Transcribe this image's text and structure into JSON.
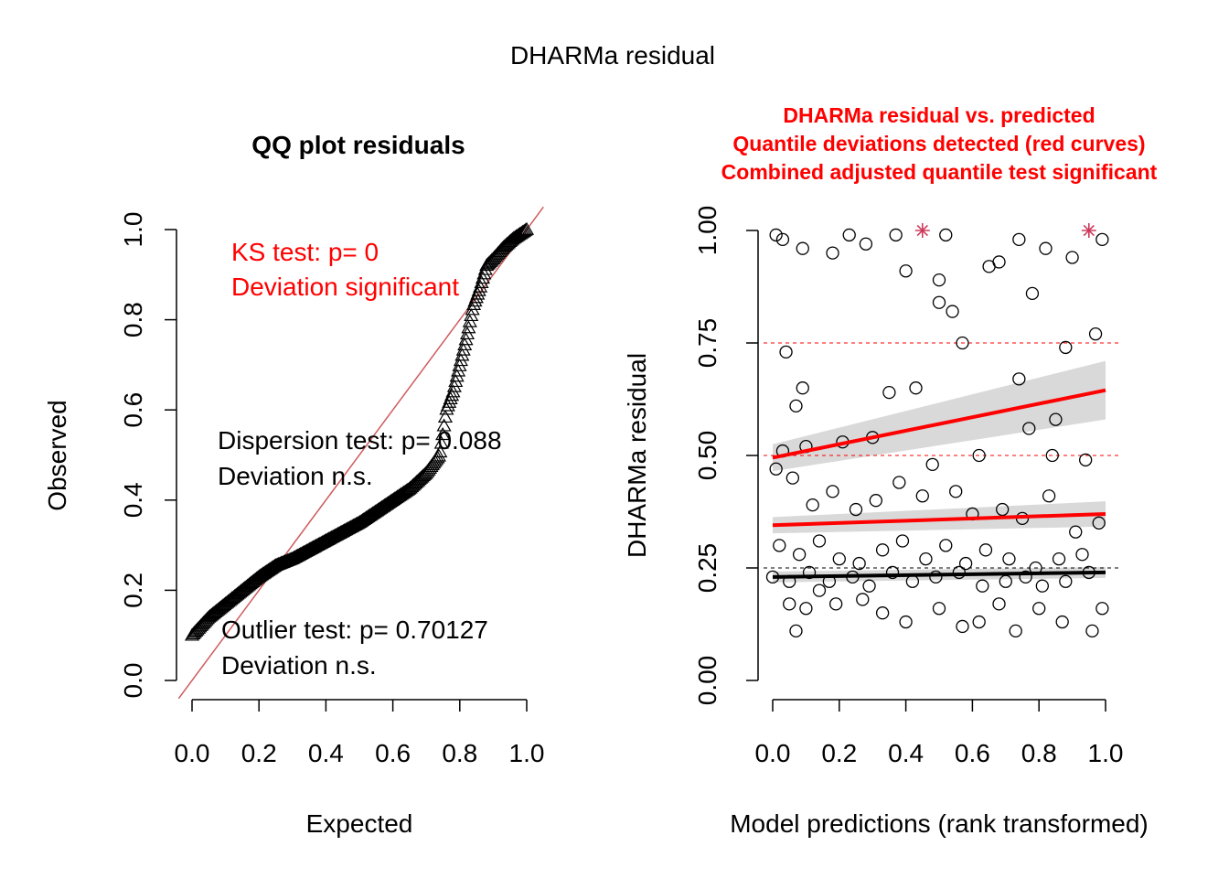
{
  "title": "DHARMa residual",
  "qq": {
    "title": "QQ plot residuals",
    "xlabel": "Expected",
    "ylabel": "Observed",
    "x_ticks": [
      "0.0",
      "0.2",
      "0.4",
      "0.6",
      "0.8",
      "1.0"
    ],
    "y_ticks": [
      "0.0",
      "0.2",
      "0.4",
      "0.6",
      "0.8",
      "1.0"
    ],
    "ks_line1": "KS test: p= 0",
    "ks_line2": "Deviation  significant",
    "disp_line1": "Dispersion test: p= 0.088",
    "disp_line2": "Deviation  n.s.",
    "out_line1": "Outlier test: p= 0.70127",
    "out_line2": "Deviation  n.s."
  },
  "resid": {
    "title1": "DHARMa residual vs. predicted",
    "title2": "Quantile deviations detected (red curves)",
    "title3": "Combined adjusted quantile test significant",
    "xlabel": "Model predictions (rank transformed)",
    "ylabel": "DHARMa residual",
    "x_ticks": [
      "0.0",
      "0.2",
      "0.4",
      "0.6",
      "0.8",
      "1.0"
    ],
    "y_ticks": [
      "0.00",
      "0.25",
      "0.50",
      "0.75",
      "1.00"
    ]
  },
  "colors": {
    "red": "#ff0000",
    "ref_line": "#cd5c5c",
    "band": "#d9d9d9"
  },
  "chart_data": [
    {
      "type": "scatter",
      "title": "QQ plot residuals",
      "xlabel": "Expected",
      "ylabel": "Observed",
      "xlim": [
        0,
        1
      ],
      "ylim": [
        0,
        1
      ],
      "marker": "triangle",
      "reference_line": {
        "from": [
          0,
          0
        ],
        "to": [
          1,
          1
        ]
      },
      "quantile_curve": {
        "x": [
          0.0,
          0.05,
          0.1,
          0.15,
          0.2,
          0.25,
          0.3,
          0.35,
          0.4,
          0.45,
          0.5,
          0.55,
          0.6,
          0.65,
          0.7,
          0.74,
          0.76,
          0.78,
          0.8,
          0.82,
          0.84,
          0.86,
          0.88,
          0.9,
          0.93,
          0.96,
          1.0
        ],
        "y": [
          0.1,
          0.14,
          0.17,
          0.2,
          0.23,
          0.255,
          0.27,
          0.29,
          0.31,
          0.33,
          0.35,
          0.375,
          0.4,
          0.425,
          0.46,
          0.5,
          0.6,
          0.64,
          0.7,
          0.76,
          0.83,
          0.87,
          0.92,
          0.935,
          0.96,
          0.98,
          1.0
        ]
      }
    },
    {
      "type": "scatter",
      "title": "DHARMa residual vs. predicted",
      "xlabel": "Model predictions (rank transformed)",
      "ylabel": "DHARMa residual",
      "xlim": [
        0,
        1
      ],
      "ylim": [
        0,
        1
      ],
      "hlines": [
        0.25,
        0.5,
        0.75
      ],
      "points": [
        [
          0.01,
          0.99
        ],
        [
          0.03,
          0.98
        ],
        [
          0.09,
          0.96
        ],
        [
          0.18,
          0.95
        ],
        [
          0.23,
          0.99
        ],
        [
          0.28,
          0.97
        ],
        [
          0.37,
          0.99
        ],
        [
          0.52,
          0.99
        ],
        [
          0.68,
          0.93
        ],
        [
          0.74,
          0.98
        ],
        [
          0.82,
          0.96
        ],
        [
          0.9,
          0.94
        ],
        [
          0.99,
          0.98
        ],
        [
          0.4,
          0.91
        ],
        [
          0.5,
          0.89
        ],
        [
          0.54,
          0.82
        ],
        [
          0.5,
          0.84
        ],
        [
          0.65,
          0.92
        ],
        [
          0.78,
          0.86
        ],
        [
          0.88,
          0.74
        ],
        [
          0.97,
          0.77
        ],
        [
          0.57,
          0.75
        ],
        [
          0.74,
          0.67
        ],
        [
          0.04,
          0.73
        ],
        [
          0.09,
          0.65
        ],
        [
          0.07,
          0.61
        ],
        [
          0.35,
          0.64
        ],
        [
          0.43,
          0.65
        ],
        [
          0.77,
          0.56
        ],
        [
          0.85,
          0.58
        ],
        [
          0.03,
          0.51
        ],
        [
          0.1,
          0.52
        ],
        [
          0.21,
          0.53
        ],
        [
          0.3,
          0.54
        ],
        [
          0.48,
          0.48
        ],
        [
          0.62,
          0.5
        ],
        [
          0.84,
          0.5
        ],
        [
          0.94,
          0.49
        ],
        [
          0.01,
          0.47
        ],
        [
          0.06,
          0.45
        ],
        [
          0.12,
          0.39
        ],
        [
          0.18,
          0.42
        ],
        [
          0.25,
          0.38
        ],
        [
          0.31,
          0.4
        ],
        [
          0.38,
          0.44
        ],
        [
          0.45,
          0.41
        ],
        [
          0.55,
          0.42
        ],
        [
          0.6,
          0.37
        ],
        [
          0.69,
          0.38
        ],
        [
          0.75,
          0.36
        ],
        [
          0.83,
          0.41
        ],
        [
          0.91,
          0.33
        ],
        [
          0.98,
          0.35
        ],
        [
          0.02,
          0.3
        ],
        [
          0.08,
          0.28
        ],
        [
          0.14,
          0.31
        ],
        [
          0.2,
          0.27
        ],
        [
          0.26,
          0.26
        ],
        [
          0.33,
          0.29
        ],
        [
          0.39,
          0.31
        ],
        [
          0.46,
          0.27
        ],
        [
          0.52,
          0.3
        ],
        [
          0.58,
          0.26
        ],
        [
          0.64,
          0.29
        ],
        [
          0.71,
          0.27
        ],
        [
          0.79,
          0.25
        ],
        [
          0.86,
          0.27
        ],
        [
          0.93,
          0.28
        ],
        [
          0.0,
          0.23
        ],
        [
          0.05,
          0.22
        ],
        [
          0.11,
          0.24
        ],
        [
          0.17,
          0.22
        ],
        [
          0.24,
          0.23
        ],
        [
          0.29,
          0.21
        ],
        [
          0.36,
          0.24
        ],
        [
          0.42,
          0.22
        ],
        [
          0.49,
          0.23
        ],
        [
          0.56,
          0.24
        ],
        [
          0.63,
          0.21
        ],
        [
          0.7,
          0.22
        ],
        [
          0.76,
          0.23
        ],
        [
          0.81,
          0.21
        ],
        [
          0.88,
          0.22
        ],
        [
          0.95,
          0.24
        ],
        [
          0.05,
          0.17
        ],
        [
          0.07,
          0.11
        ],
        [
          0.1,
          0.16
        ],
        [
          0.14,
          0.2
        ],
        [
          0.19,
          0.17
        ],
        [
          0.27,
          0.18
        ],
        [
          0.33,
          0.15
        ],
        [
          0.4,
          0.13
        ],
        [
          0.5,
          0.16
        ],
        [
          0.57,
          0.12
        ],
        [
          0.62,
          0.13
        ],
        [
          0.68,
          0.17
        ],
        [
          0.73,
          0.11
        ],
        [
          0.8,
          0.16
        ],
        [
          0.87,
          0.13
        ],
        [
          0.96,
          0.11
        ],
        [
          0.99,
          0.16
        ]
      ],
      "outliers": [
        [
          0.45,
          1.0
        ],
        [
          0.95,
          1.0
        ]
      ],
      "quantile_fits": [
        {
          "quantile": 0.25,
          "y_at_0": 0.23,
          "y_at_1": 0.24,
          "color": "black"
        },
        {
          "quantile": 0.5,
          "y_at_0": 0.345,
          "y_at_1": 0.37,
          "color": "red"
        },
        {
          "quantile": 0.75,
          "y_at_0": 0.495,
          "y_at_1": 0.645,
          "color": "red"
        }
      ]
    }
  ]
}
